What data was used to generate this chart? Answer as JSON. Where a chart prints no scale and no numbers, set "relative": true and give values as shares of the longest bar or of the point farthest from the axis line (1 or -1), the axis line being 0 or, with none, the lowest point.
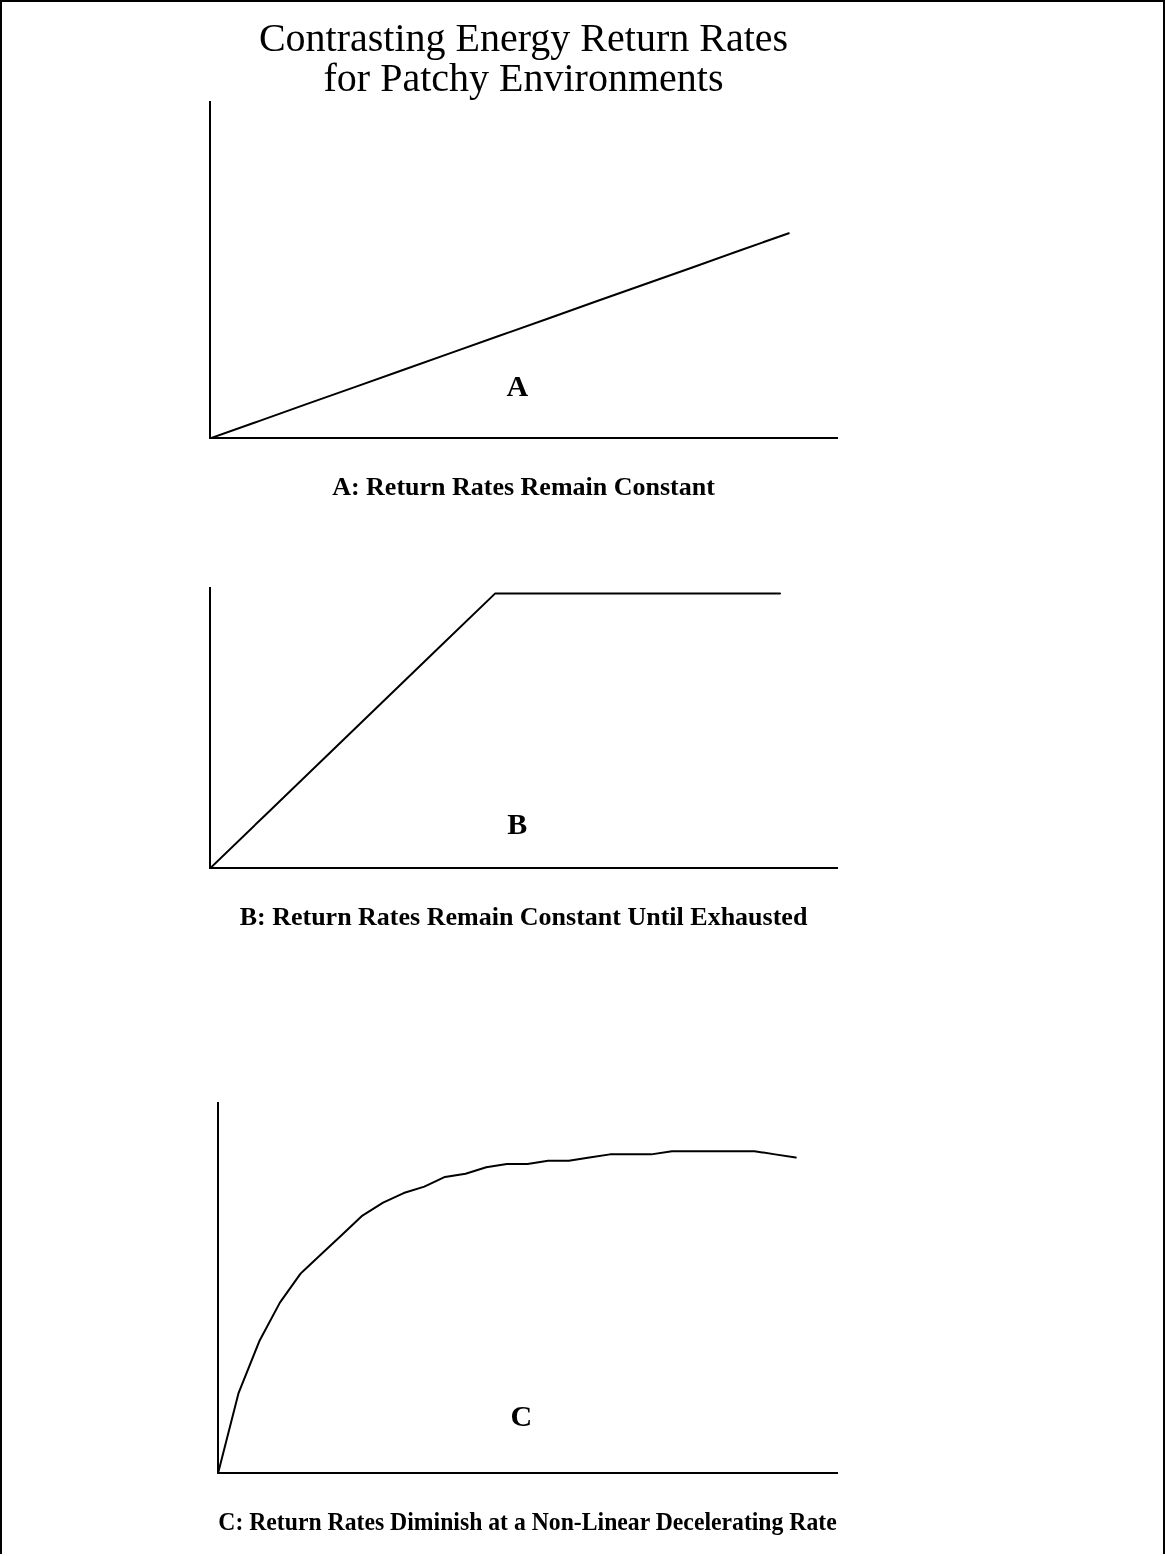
{
  "chart_data": [
    {
      "type": "line",
      "title": "Contrasting Energy Return Rates\nfor Patchy Environments",
      "xlabel": "A: Return Rates Remain Constant",
      "annotations": [
        "A"
      ],
      "relative": true,
      "grid": false,
      "legend": false,
      "marker": "none",
      "categories": [
        null,
        null,
        null,
        null,
        null,
        null,
        null,
        null,
        null,
        null,
        null,
        null,
        null,
        null
      ],
      "series": [
        {
          "color": "#000000",
          "values": [
            0,
            0.083,
            0.167,
            0.25,
            0.333,
            0.417,
            0.5,
            0.583,
            0.667,
            0.75,
            0.833,
            0.917,
            1,
            null
          ]
        }
      ]
    },
    {
      "type": "line",
      "xlabel": "B: Return Rates Remain Constant Until Exhausted",
      "annotations": [
        "B"
      ],
      "relative": true,
      "grid": false,
      "legend": false,
      "marker": "none",
      "categories": [
        null,
        null,
        null,
        null,
        null,
        null,
        null,
        null,
        null,
        null,
        null,
        null
      ],
      "series": [
        {
          "color": "#000000",
          "values": [
            0,
            0.2,
            0.4,
            0.6,
            0.8,
            1,
            1,
            1,
            1,
            1,
            1,
            null
          ]
        }
      ]
    },
    {
      "type": "line",
      "xlabel": "C: Return Rates Diminish at a Non-Linear Decelerating Rate",
      "annotations": [
        "C"
      ],
      "relative": true,
      "grid": false,
      "legend": false,
      "marker": "none",
      "categories": [
        null,
        null,
        null,
        null,
        null,
        null,
        null,
        null,
        null,
        null,
        null,
        null,
        null,
        null,
        null,
        null,
        null,
        null,
        null,
        null,
        null,
        null,
        null,
        null,
        null,
        null,
        null,
        null,
        null,
        null,
        null
      ],
      "series": [
        {
          "color": "#000000",
          "values": [
            0,
            0.25,
            0.41,
            0.53,
            0.62,
            0.68,
            0.74,
            0.8,
            0.84,
            0.87,
            0.89,
            0.92,
            0.93,
            0.95,
            0.96,
            0.96,
            0.97,
            0.97,
            0.98,
            0.99,
            0.99,
            0.99,
            1,
            1,
            1,
            1,
            1,
            0.99,
            0.98,
            null,
            null
          ]
        }
      ]
    }
  ]
}
